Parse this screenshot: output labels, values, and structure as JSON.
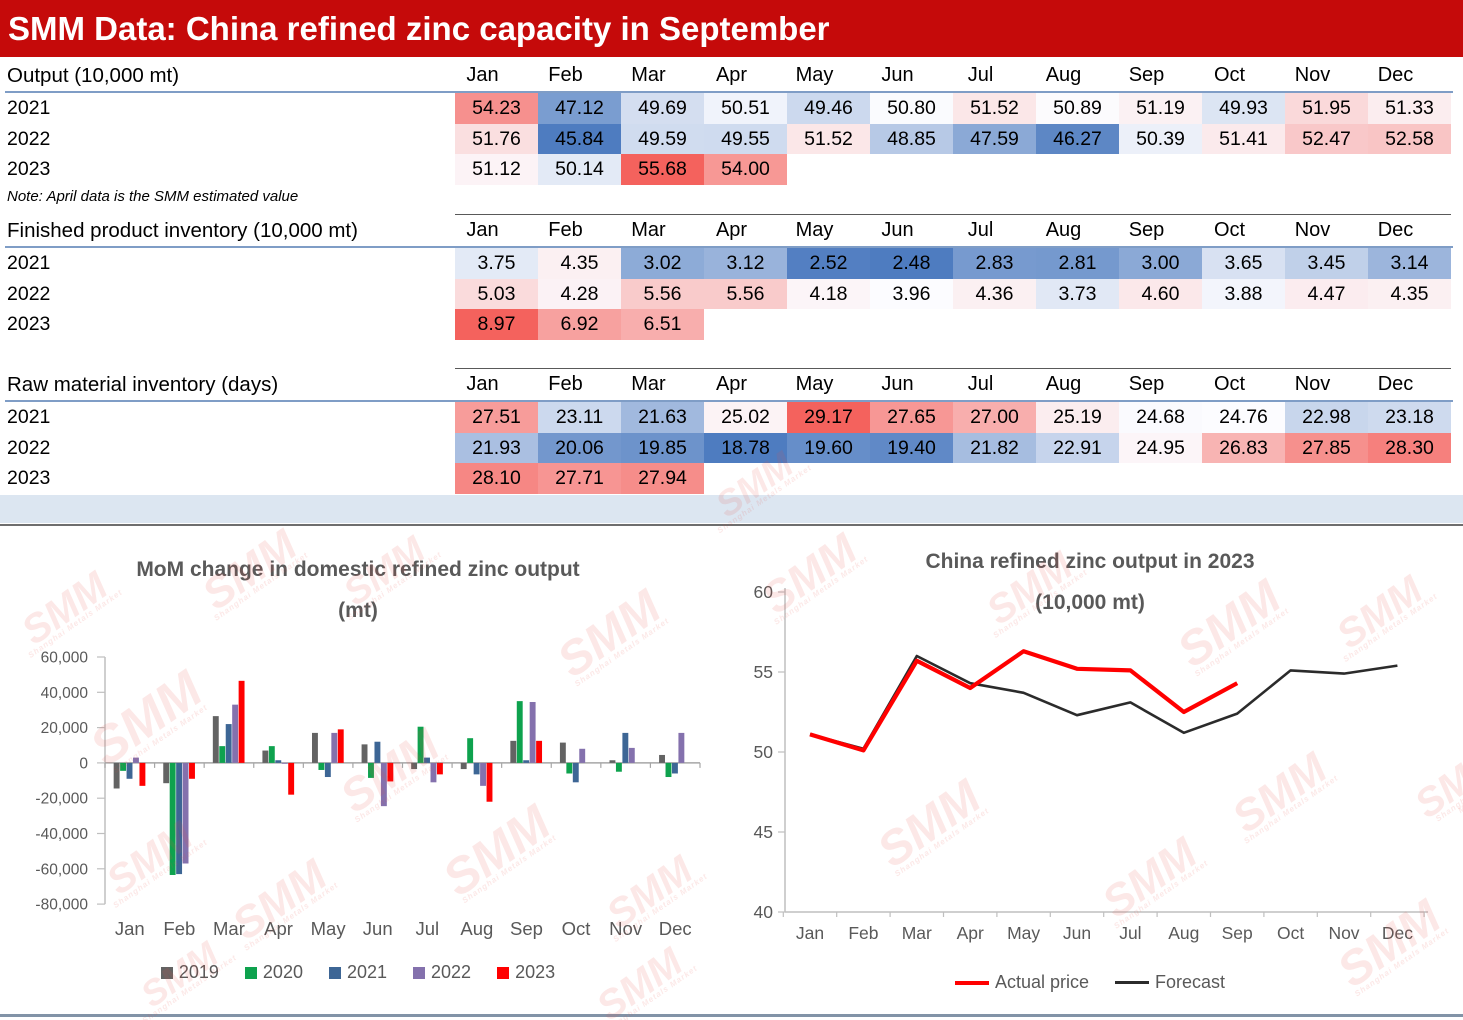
{
  "header": {
    "title": "SMM Data: China refined zinc capacity in September"
  },
  "months": [
    "Jan",
    "Feb",
    "Mar",
    "Apr",
    "May",
    "Jun",
    "Jul",
    "Aug",
    "Sep",
    "Oct",
    "Nov",
    "Dec"
  ],
  "colors": {
    "header_bg": "#C50A0A",
    "scale_low": "#4E7CC0",
    "scale_mid": "#FCFCFF",
    "scale_high": "#F4625D",
    "band_blue": "#DCE6F1",
    "divider_gray": "#6E6E6E",
    "footer_band": "#8293A7",
    "chart_text": "#595959",
    "axis_gray": "#BFBFBF",
    "zero_line": "#A6A6A6"
  },
  "tables": [
    {
      "title": "Output (10,000 mt)",
      "note": "Note: April data is the SMM estimated value",
      "scale": {
        "min": 45.84,
        "mid": 50.845,
        "max": 55.68
      },
      "rows": [
        {
          "year": "2021",
          "values": [
            54.23,
            47.12,
            49.69,
            50.51,
            49.46,
            50.8,
            51.52,
            50.89,
            51.19,
            49.93,
            51.95,
            51.33
          ]
        },
        {
          "year": "2022",
          "values": [
            51.76,
            45.84,
            49.59,
            49.55,
            51.52,
            48.85,
            47.59,
            46.27,
            50.39,
            51.41,
            52.47,
            52.58
          ]
        },
        {
          "year": "2023",
          "values": [
            51.12,
            50.14,
            55.68,
            54.0
          ]
        }
      ]
    },
    {
      "title": "Finished product inventory (10,000 mt)",
      "scale": {
        "min": 2.48,
        "mid": 3.96,
        "max": 8.97
      },
      "rows": [
        {
          "year": "2021",
          "values": [
            3.75,
            4.35,
            3.02,
            3.12,
            2.52,
            2.48,
            2.83,
            2.81,
            3.0,
            3.65,
            3.45,
            3.14
          ]
        },
        {
          "year": "2022",
          "values": [
            5.03,
            4.28,
            5.56,
            5.56,
            4.18,
            3.96,
            4.36,
            3.73,
            4.6,
            3.88,
            4.47,
            4.35
          ]
        },
        {
          "year": "2023",
          "values": [
            8.97,
            6.92,
            6.51
          ]
        }
      ]
    },
    {
      "title": "Raw material inventory (days)",
      "scale": {
        "min": 18.78,
        "mid": 24.76,
        "max": 29.17
      },
      "rows": [
        {
          "year": "2021",
          "values": [
            27.51,
            23.11,
            21.63,
            25.02,
            29.17,
            27.65,
            27.0,
            25.19,
            24.68,
            24.76,
            22.98,
            23.18
          ]
        },
        {
          "year": "2022",
          "values": [
            21.93,
            20.06,
            19.85,
            18.78,
            19.6,
            19.4,
            21.82,
            22.91,
            24.95,
            26.83,
            27.85,
            28.3
          ]
        },
        {
          "year": "2023",
          "values": [
            28.1,
            27.71,
            27.94
          ]
        }
      ]
    }
  ],
  "chart_data": [
    {
      "type": "bar",
      "title": "MoM change in domestic refined zinc output",
      "subtitle": "(mt)",
      "categories": [
        "Jan",
        "Feb",
        "Mar",
        "Apr",
        "May",
        "Jun",
        "Jul",
        "Aug",
        "Sep",
        "Oct",
        "Nov",
        "Dec"
      ],
      "ylim": [
        -80000,
        60000
      ],
      "ytick_step": 20000,
      "grid": false,
      "legend_position": "bottom",
      "series": [
        {
          "name": "2019",
          "color": "#636363",
          "values": [
            -14500,
            -11500,
            26500,
            7000,
            17000,
            10500,
            -3500,
            -3500,
            12500,
            11500,
            1500,
            4500
          ]
        },
        {
          "name": "2020",
          "color": "#0EA24E",
          "values": [
            -4500,
            -63500,
            9500,
            9500,
            -4000,
            -8500,
            20500,
            14000,
            35000,
            -6000,
            -5000,
            -8000
          ]
        },
        {
          "name": "2021",
          "color": "#3D6695",
          "values": [
            -9000,
            -63000,
            22000,
            1500,
            -8000,
            12000,
            3000,
            -6500,
            1500,
            -11000,
            17000,
            -6000
          ]
        },
        {
          "name": "2022",
          "color": "#8471AD",
          "values": [
            3000,
            -57000,
            33000,
            -500,
            17000,
            -24500,
            -11000,
            -13000,
            34500,
            8000,
            8500,
            17000
          ]
        },
        {
          "name": "2023",
          "color": "#FF0000",
          "values": [
            -13000,
            -9000,
            46500,
            -18000,
            19000,
            -10500,
            -6500,
            -22000,
            12500,
            null,
            null,
            null
          ]
        }
      ]
    },
    {
      "type": "line",
      "title": "China refined zinc output in 2023",
      "subtitle": "(10,000 mt)",
      "categories": [
        "Jan",
        "Feb",
        "Mar",
        "Apr",
        "May",
        "Jun",
        "Jul",
        "Aug",
        "Sep",
        "Oct",
        "Nov",
        "Dec"
      ],
      "ylim": [
        40,
        60
      ],
      "ytick_step": 5,
      "grid": false,
      "legend_position": "bottom",
      "series": [
        {
          "name": "Forecast",
          "color": "#2B2B2B",
          "values": [
            51.1,
            50.2,
            56.0,
            54.3,
            53.7,
            52.3,
            53.1,
            51.2,
            52.4,
            55.1,
            54.9,
            55.4
          ]
        },
        {
          "name": "Actual price",
          "color": "#FF0000",
          "values": [
            51.1,
            50.1,
            55.7,
            54.0,
            56.3,
            55.2,
            55.1,
            52.5,
            54.3,
            null,
            null,
            null
          ]
        }
      ]
    }
  ],
  "watermark": {
    "text": "SMM",
    "subtext": "Shanghai Metals Market"
  }
}
